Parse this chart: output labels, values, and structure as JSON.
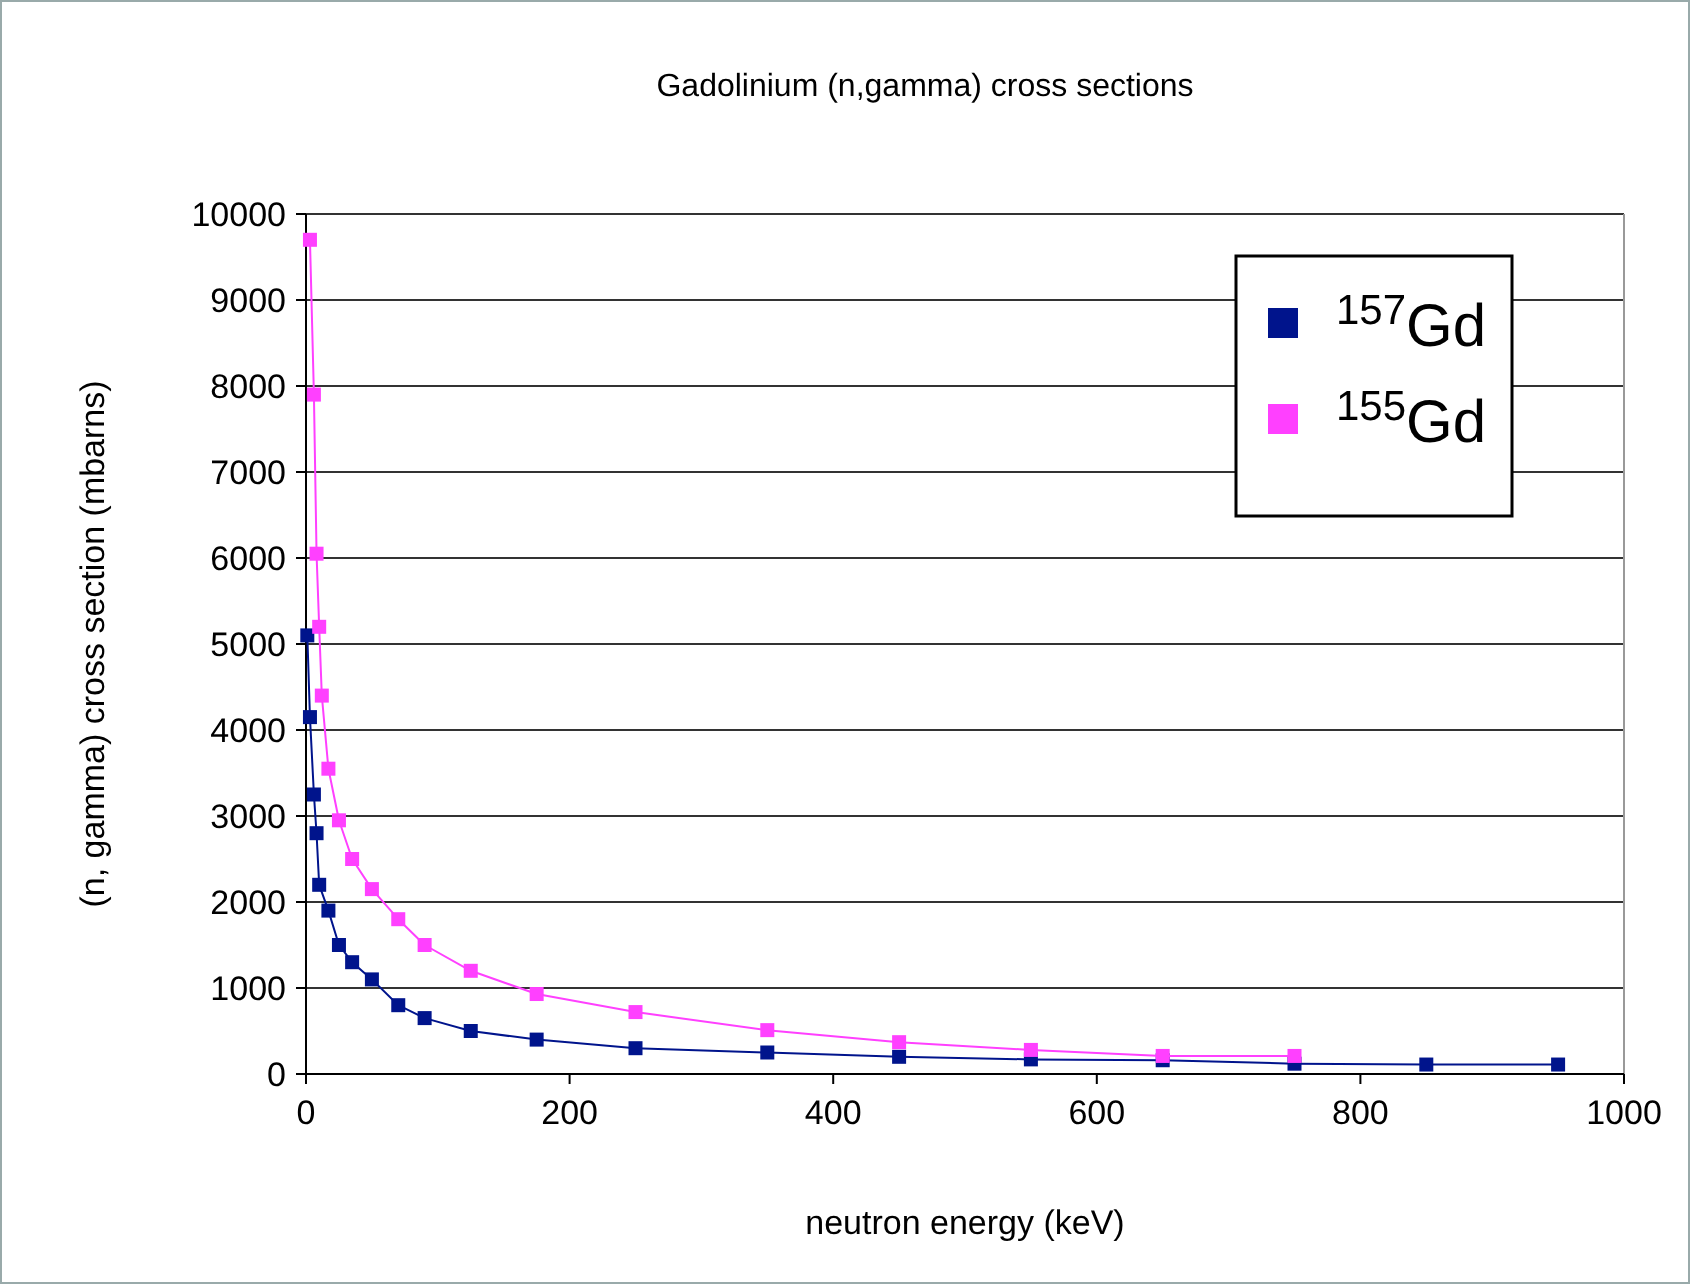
{
  "chart_data": {
    "type": "line",
    "title": "Gadolinium (n,gamma) cross sections",
    "xlabel": "neutron energy (keV)",
    "ylabel": "(n, gamma) cross section  (mbarns)",
    "xlim": [
      0,
      1000
    ],
    "xticks": [
      0,
      200,
      400,
      600,
      800,
      1000
    ],
    "ylim": [
      0,
      10000
    ],
    "yticks": [
      0,
      1000,
      2000,
      3000,
      4000,
      5000,
      6000,
      7000,
      8000,
      9000,
      10000
    ],
    "grid": "y",
    "legend": "top right",
    "marker": "square",
    "line_style": "solid",
    "series": [
      {
        "name": "$^{157}$Gd",
        "color": "#00148c",
        "x": [
          1,
          3,
          6,
          8,
          10,
          17,
          25,
          35,
          50,
          70,
          90,
          125,
          175,
          250,
          350,
          450,
          550,
          650,
          750,
          850,
          950
        ],
        "values": [
          5100,
          4150,
          3250,
          2800,
          2200,
          1900,
          1500,
          1300,
          1100,
          800,
          650,
          500,
          400,
          300,
          250,
          200,
          170,
          160,
          120,
          110,
          110
        ]
      },
      {
        "name": "$^{155}$Gd",
        "color": "#ff40ff",
        "x": [
          3,
          6,
          8,
          10,
          12,
          17,
          25,
          35,
          50,
          70,
          90,
          125,
          175,
          250,
          350,
          450,
          550,
          650,
          750
        ],
        "values": [
          9700,
          7900,
          6050,
          5200,
          4400,
          3550,
          2950,
          2500,
          2150,
          1800,
          1500,
          1200,
          930,
          720,
          510,
          370,
          280,
          210,
          210
        ]
      }
    ]
  }
}
